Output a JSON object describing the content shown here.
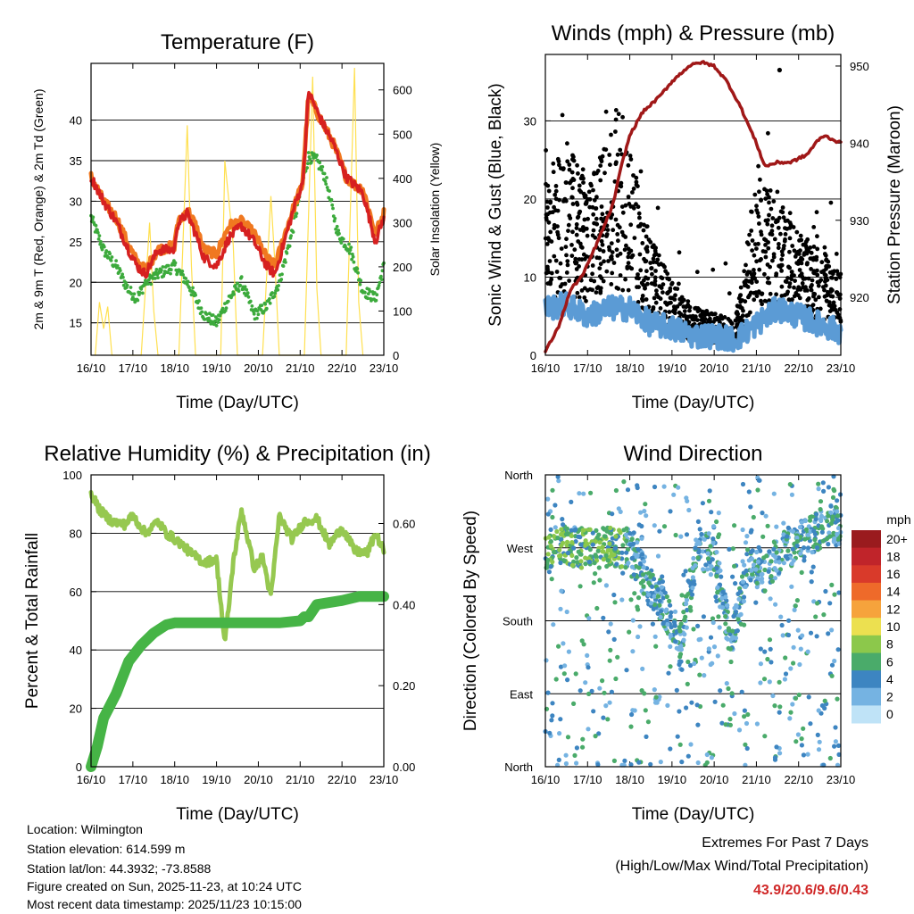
{
  "colors": {
    "temp_2m": "#d62020",
    "temp_9m": "#f07820",
    "dewpoint": "#3caa3c",
    "solar": "#ffe050",
    "wind": "#5b9bd5",
    "gust": "#000000",
    "pressure": "#a01818",
    "rh": "#96c850",
    "precip": "#46b446",
    "extremes": "#d02828"
  },
  "chart_data": [
    {
      "type": "line",
      "title": "Temperature (F)",
      "xlabel": "Time (Day/UTC)",
      "ylabel": "2m & 9m T (Red, Orange) & 2m Td (Green)",
      "ylabel_right": "Solar Insolation (Yellow)",
      "xticks": [
        "16/10",
        "17/10",
        "18/10",
        "19/10",
        "20/10",
        "21/10",
        "22/10",
        "23/10"
      ],
      "xlim": [
        0,
        7
      ],
      "ylim": [
        11,
        47
      ],
      "yticks": [
        15,
        20,
        25,
        30,
        35,
        40
      ],
      "ylim_right": [
        0,
        660
      ],
      "yticks_right": [
        0,
        100,
        200,
        300,
        400,
        500,
        600
      ],
      "series": [
        {
          "name": "2m T",
          "x": [
            0,
            0.3,
            0.6,
            0.9,
            1.1,
            1.3,
            1.6,
            2.0,
            2.05,
            2.3,
            2.5,
            2.7,
            3.0,
            3.3,
            3.6,
            3.9,
            4.2,
            4.4,
            4.7,
            4.9,
            5.05,
            5.1,
            5.2,
            5.5,
            5.8,
            6.1,
            6.3,
            6.5,
            6.8,
            7.0
          ],
          "y": [
            33,
            30,
            27.5,
            24,
            22,
            21,
            24,
            24,
            27,
            28.5,
            26,
            23,
            22,
            25.5,
            27,
            25,
            22,
            21,
            26.5,
            30,
            32,
            35,
            43.5,
            40,
            37,
            33,
            32,
            31,
            25,
            28
          ]
        },
        {
          "name": "9m T",
          "x": [
            0,
            0.3,
            0.6,
            0.9,
            1.1,
            1.3,
            1.6,
            2.0,
            2.05,
            2.3,
            2.5,
            2.7,
            3.0,
            3.3,
            3.6,
            3.9,
            4.2,
            4.4,
            4.7,
            4.9,
            5.05,
            5.1,
            5.2,
            5.5,
            5.8,
            6.1,
            6.3,
            6.5,
            6.8,
            7.0
          ],
          "y": [
            33,
            30,
            28,
            24.5,
            22.5,
            21.5,
            24,
            24.5,
            27,
            29,
            27,
            24,
            23.5,
            27,
            27.5,
            26,
            23,
            22,
            27,
            30,
            32,
            35.5,
            43,
            40,
            37,
            33,
            32,
            31.5,
            26,
            28.5
          ]
        },
        {
          "name": "2m Td",
          "x": [
            0,
            0.3,
            0.6,
            0.9,
            1.1,
            1.3,
            1.6,
            2.0,
            2.3,
            2.7,
            3.0,
            3.3,
            3.6,
            3.9,
            4.2,
            4.5,
            4.8,
            5.0,
            5.2,
            5.4,
            5.6,
            5.9,
            6.2,
            6.5,
            6.8,
            7.0
          ],
          "y": [
            28,
            24,
            22,
            19,
            18,
            20,
            21,
            22,
            20,
            16,
            15,
            18,
            20,
            16,
            17,
            20,
            26,
            31,
            35.5,
            35,
            33,
            26,
            24,
            19,
            18,
            22
          ]
        },
        {
          "name": "Solar Insolation",
          "axis": "right",
          "x": [
            0.1,
            0.2,
            0.3,
            0.4,
            0.5,
            1.2,
            1.4,
            1.5,
            1.6,
            2.1,
            2.3,
            2.4,
            2.5,
            3.1,
            3.2,
            3.4,
            3.5,
            4.1,
            4.3,
            4.4,
            4.5,
            5.1,
            5.3,
            5.4,
            5.5,
            6.1,
            6.3,
            6.4,
            6.5
          ],
          "y": [
            0,
            120,
            60,
            110,
            0,
            0,
            300,
            100,
            0,
            0,
            520,
            200,
            0,
            0,
            440,
            250,
            0,
            0,
            360,
            200,
            0,
            0,
            630,
            150,
            0,
            0,
            650,
            120,
            0
          ]
        }
      ]
    },
    {
      "type": "scatter",
      "title": "Winds (mph) & Pressure (mb)",
      "xlabel": "Time (Day/UTC)",
      "ylabel": "Sonic Wind & Gust (Blue, Black)",
      "ylabel_right": "Station Pressure (Maroon)",
      "xticks": [
        "16/10",
        "17/10",
        "18/10",
        "19/10",
        "20/10",
        "21/10",
        "22/10",
        "23/10"
      ],
      "xlim": [
        0,
        7
      ],
      "ylim": [
        0,
        38.5
      ],
      "yticks": [
        0,
        10,
        20,
        30
      ],
      "ylim_right": [
        912.5,
        951.5
      ],
      "yticks_right": [
        920,
        930,
        940,
        950
      ],
      "series": [
        {
          "name": "Sonic Wind",
          "x": [
            0,
            0.5,
            1.0,
            1.5,
            2.0,
            2.5,
            3.0,
            3.5,
            4.0,
            4.5,
            5.0,
            5.5,
            6.0,
            6.5,
            7.0
          ],
          "y": [
            6,
            6.5,
            5,
            6,
            6,
            4,
            3.5,
            2.5,
            2.5,
            2,
            4,
            6,
            5,
            4,
            3
          ]
        },
        {
          "name": "Gust",
          "x": [
            0,
            0.5,
            1.0,
            1.5,
            2.0,
            2.5,
            3.0,
            3.5,
            4.0,
            4.5,
            5.0,
            5.5,
            6.0,
            6.5,
            7.0
          ],
          "y": [
            15,
            18,
            14,
            18,
            17,
            10,
            6,
            4,
            3.5,
            3,
            15,
            13,
            10,
            9,
            7
          ]
        },
        {
          "name": "Station Pressure",
          "axis": "right",
          "x": [
            0,
            0.3,
            0.6,
            0.9,
            1.3,
            1.6,
            1.8,
            2.0,
            2.3,
            2.7,
            3.0,
            3.4,
            3.7,
            4.0,
            4.3,
            4.6,
            5.0,
            5.2,
            5.5,
            5.8,
            6.0,
            6.2,
            6.4,
            6.6,
            6.8,
            7.0
          ],
          "y": [
            913,
            916,
            921,
            923,
            928,
            932,
            937,
            941,
            944,
            946,
            948,
            950,
            950.5,
            950,
            948,
            945,
            940,
            937,
            937.5,
            937.5,
            938,
            938.5,
            940,
            941,
            940.5,
            940
          ]
        }
      ]
    },
    {
      "type": "line",
      "title": "Relative Humidity (%) & Precipitation (in)",
      "xlabel": "Time (Day/UTC)",
      "ylabel": "Percent & Total Rainfall",
      "xticks": [
        "16/10",
        "17/10",
        "18/10",
        "19/10",
        "20/10",
        "21/10",
        "22/10",
        "23/10"
      ],
      "xlim": [
        0,
        7
      ],
      "ylim": [
        0,
        100
      ],
      "yticks": [
        0,
        20,
        40,
        60,
        80,
        100
      ],
      "ylim_right": [
        0,
        0.72
      ],
      "yticks_right": [
        "0.00",
        "0.20",
        "0.40",
        "0.60"
      ],
      "series": [
        {
          "name": "Relative Humidity",
          "x": [
            0,
            0.2,
            0.5,
            0.8,
            1.0,
            1.3,
            1.6,
            1.8,
            2.1,
            2.4,
            2.7,
            3.0,
            3.2,
            3.4,
            3.6,
            3.9,
            4.1,
            4.3,
            4.5,
            4.8,
            5.1,
            5.4,
            5.7,
            6.0,
            6.3,
            6.6,
            6.8,
            7.0
          ],
          "y": [
            94,
            88,
            84,
            83,
            86,
            80,
            84,
            80,
            77,
            73,
            70,
            71,
            42,
            70,
            88,
            68,
            72,
            58,
            86,
            78,
            84,
            85,
            76,
            82,
            74,
            73,
            80,
            74
          ]
        },
        {
          "name": "Total Precipitation",
          "axis": "right",
          "x": [
            0,
            0.15,
            0.3,
            0.6,
            0.9,
            1.2,
            1.5,
            1.8,
            2.0,
            4.5,
            5.0,
            5.1,
            5.2,
            5.4,
            6.0,
            6.4,
            7.0
          ],
          "y": [
            0,
            0.05,
            0.12,
            0.18,
            0.26,
            0.3,
            0.33,
            0.35,
            0.355,
            0.355,
            0.36,
            0.37,
            0.37,
            0.4,
            0.41,
            0.42,
            0.42
          ]
        }
      ]
    },
    {
      "type": "scatter",
      "title": "Wind Direction",
      "xlabel": "Time (Day/UTC)",
      "ylabel": "Direction (Colored By Speed)",
      "xticks": [
        "16/10",
        "17/10",
        "18/10",
        "19/10",
        "20/10",
        "21/10",
        "22/10",
        "23/10"
      ],
      "xlim": [
        0,
        7
      ],
      "ylim": [
        0,
        360
      ],
      "yticks": [
        "North",
        "East",
        "South",
        "West",
        "North"
      ],
      "colorbar_title": "mph",
      "colorbar_labels": [
        "20+",
        "18",
        "16",
        "14",
        "12",
        "10",
        "8",
        "6",
        "4",
        "2",
        "0"
      ],
      "colorbar_colors": [
        "#9a1b1e",
        "#c0242a",
        "#d93a2a",
        "#ee6a2a",
        "#f6a33c",
        "#ece050",
        "#8cc84b",
        "#4aab6a",
        "#3d85c1",
        "#75b3e2",
        "#bfe3f7"
      ],
      "series": [
        {
          "name": "Direction",
          "x": [
            0,
            0.5,
            1.0,
            1.5,
            2.0,
            2.4,
            2.8,
            3.2,
            3.6,
            4.0,
            4.4,
            4.8,
            5.2,
            5.6,
            6.0,
            6.4,
            6.8,
            7.0
          ],
          "y": [
            270,
            275,
            268,
            272,
            270,
            230,
            200,
            150,
            270,
            260,
            150,
            250,
            240,
            265,
            280,
            290,
            300,
            290
          ]
        }
      ]
    }
  ],
  "info": {
    "location": "Location: Wilmington",
    "elevation": "Station elevation: 614.599 m",
    "latlon": "Station lat/lon: 44.3932; -73.8588",
    "created": "Figure created on Sun, 2025-11-23, at 10:24 UTC",
    "recent": "Most recent data timestamp: 2025/11/23 10:15:00"
  },
  "extremes": {
    "title": "Extremes For Past 7 Days",
    "subtitle": "(High/Low/Max Wind/Total Precipitation)",
    "values": "43.9/20.6/9.6/0.43"
  }
}
